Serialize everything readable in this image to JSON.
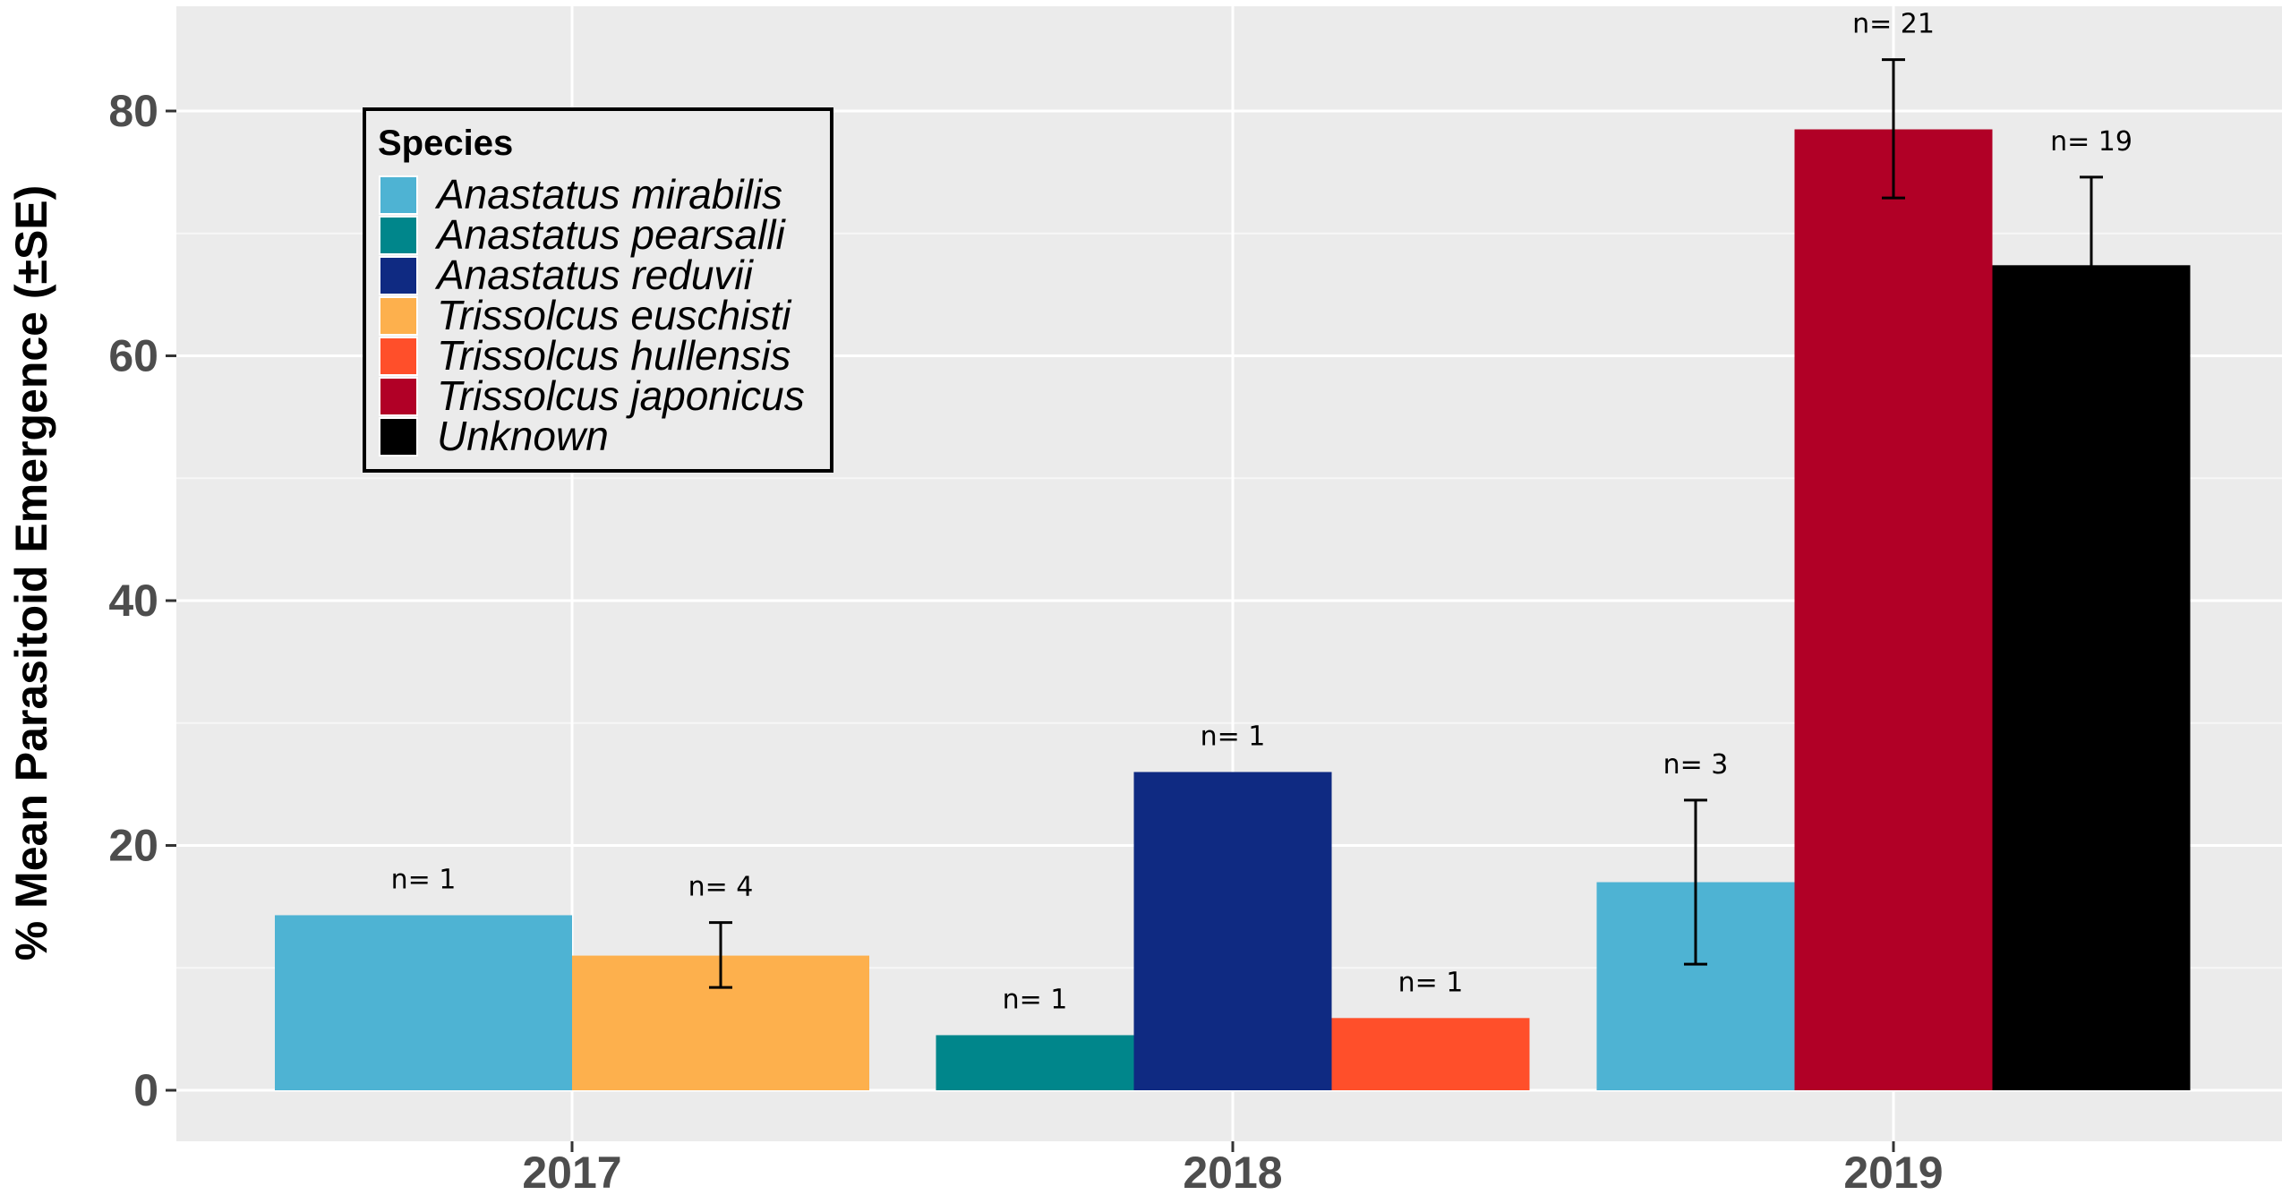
{
  "chart_data": {
    "type": "bar",
    "ylabel": "% Mean Parasitoid Emergence (±SE)",
    "xlabel": "",
    "ylim": [
      0,
      88
    ],
    "yticks": [
      0,
      20,
      40,
      60,
      80
    ],
    "grid": true,
    "legend": {
      "title": "Species",
      "placement": "top-left",
      "items": [
        {
          "name": "Anastatus mirabilis",
          "color": "#4EB3D3"
        },
        {
          "name": "Anastatus pearsalli",
          "color": "#00868B"
        },
        {
          "name": "Anastatus reduvii",
          "color": "#0F2A82"
        },
        {
          "name": "Trissolcus euschisti",
          "color": "#FDB04D"
        },
        {
          "name": "Trissolcus hullensis",
          "color": "#FF4F2A"
        },
        {
          "name": "Trissolcus japonicus",
          "color": "#B10026"
        },
        {
          "name": "Unknown",
          "color": "#000000"
        }
      ]
    },
    "categories": [
      "2017",
      "2018",
      "2019"
    ],
    "groups": [
      {
        "category": "2017",
        "bars": [
          {
            "species": "Anastatus mirabilis",
            "value": 14.3,
            "n_label": "n= 1"
          },
          {
            "species": "Trissolcus euschisti",
            "value": 11.0,
            "se_low": 8.4,
            "se_high": 13.7,
            "n_label": "n= 4"
          }
        ]
      },
      {
        "category": "2018",
        "bars": [
          {
            "species": "Anastatus pearsalli",
            "value": 4.5,
            "n_label": "n= 1"
          },
          {
            "species": "Anastatus reduvii",
            "value": 26.0,
            "n_label": "n= 1"
          },
          {
            "species": "Trissolcus hullensis",
            "value": 5.9,
            "n_label": "n= 1"
          }
        ]
      },
      {
        "category": "2019",
        "bars": [
          {
            "species": "Anastatus mirabilis",
            "value": 17.0,
            "se_low": 10.3,
            "se_high": 23.7,
            "n_label": "n= 3"
          },
          {
            "species": "Trissolcus japonicus",
            "value": 78.5,
            "se_low": 72.9,
            "se_high": 84.2,
            "n_label": "n= 21"
          },
          {
            "species": "Unknown",
            "value": 67.4,
            "se_low": 60.0,
            "se_high": 74.6,
            "n_label": "n= 19"
          }
        ]
      }
    ]
  }
}
